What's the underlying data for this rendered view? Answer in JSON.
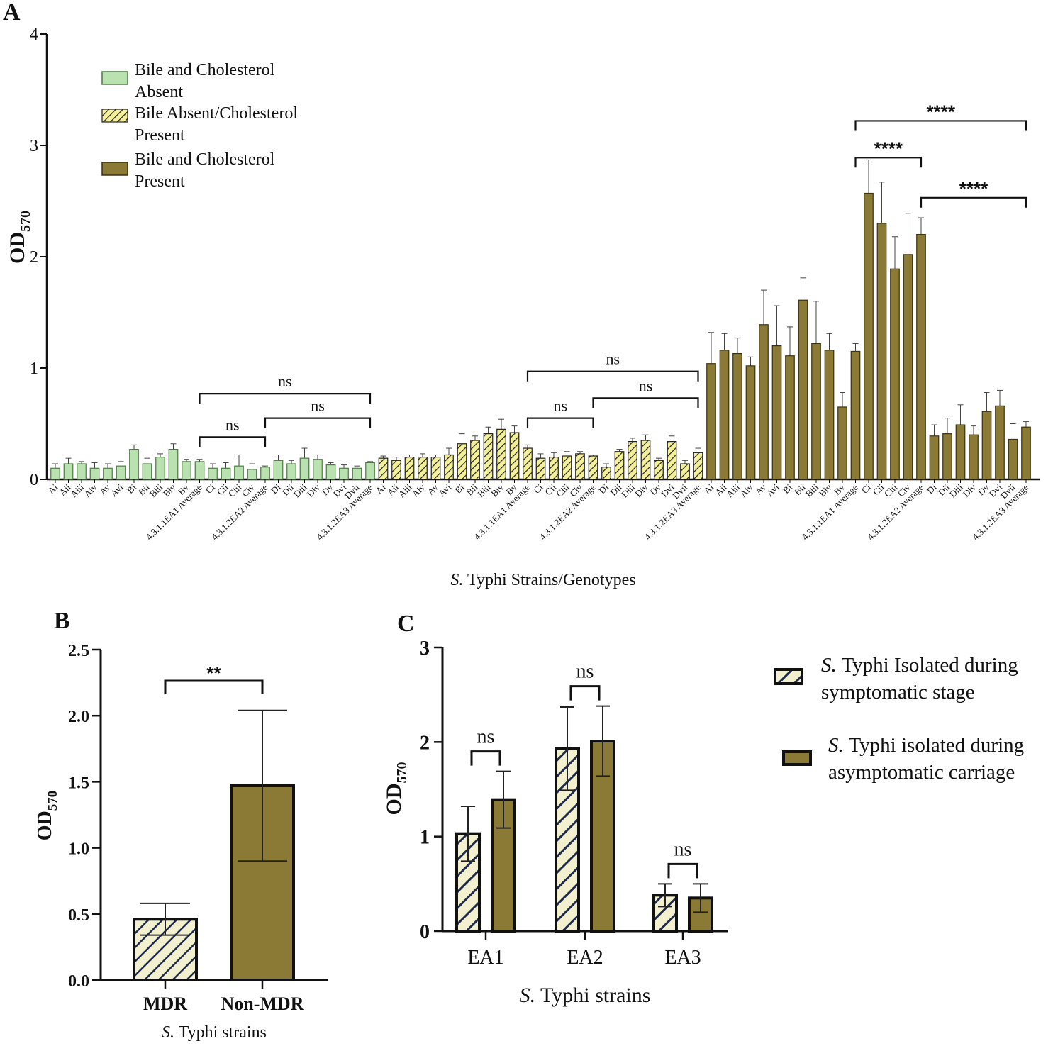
{
  "figure": {
    "panel_labels": [
      "A",
      "B",
      "C"
    ],
    "colors": {
      "absent": "#b9e2b0",
      "absent_stroke": "#4f7a45",
      "bile_absent": "#f4f09a",
      "hatch_line": "#222222",
      "present": "#8b7a36",
      "present_stroke": "#3b3312",
      "mdr_bg": "#f3f0cf",
      "mdr_line": "#1d2a4a"
    }
  },
  "chart_data": [
    {
      "id": "A",
      "type": "bar",
      "ylabel": "OD",
      "ylabel_sub": "570",
      "xlabel_italic": "S.",
      "xlabel_rest": " Typhi Strains/Genotypes",
      "ylim": [
        0,
        4
      ],
      "yticks": [
        "0",
        "1",
        "2",
        "3",
        "4"
      ],
      "legend": [
        {
          "line1": "Bile and Cholesterol",
          "line2": "Absent",
          "style": "absent"
        },
        {
          "line1": "Bile Absent/Cholesterol",
          "line2": "Present",
          "style": "bile_absent"
        },
        {
          "line1": "Bile and Cholesterol",
          "line2": "Present",
          "style": "present"
        }
      ],
      "categories": [
        "Ai",
        "Aii",
        "Aiii",
        "Aiv",
        "Av",
        "Avi",
        "Bi",
        "Bii",
        "Biii",
        "Biv",
        "Bv",
        "4.3.1.1EA1 Average",
        "Ci",
        "Cii",
        "Ciii",
        "Civ",
        "4.3.1.2EA2 Average",
        "Di",
        "Dii",
        "Diii",
        "Div",
        "Dv",
        "Dvi",
        "Dvii",
        "4.3.1.2EA3 Average"
      ],
      "series": [
        {
          "name": "Bile and Cholesterol Absent",
          "style": "absent",
          "values": [
            0.1,
            0.14,
            0.14,
            0.1,
            0.1,
            0.12,
            0.27,
            0.14,
            0.2,
            0.27,
            0.16,
            0.16,
            0.1,
            0.1,
            0.12,
            0.09,
            0.11,
            0.17,
            0.14,
            0.19,
            0.18,
            0.13,
            0.1,
            0.1,
            0.15
          ],
          "errors": [
            0.04,
            0.05,
            0.02,
            0.05,
            0.04,
            0.04,
            0.04,
            0.05,
            0.03,
            0.05,
            0.02,
            0.02,
            0.04,
            0.05,
            0.1,
            0.05,
            0.01,
            0.05,
            0.03,
            0.09,
            0.04,
            0.02,
            0.03,
            0.02,
            0.01
          ]
        },
        {
          "name": "Bile Absent/Cholesterol Present",
          "style": "bile_absent",
          "values": [
            0.19,
            0.17,
            0.2,
            0.2,
            0.2,
            0.22,
            0.32,
            0.35,
            0.41,
            0.45,
            0.42,
            0.28,
            0.19,
            0.2,
            0.21,
            0.23,
            0.21,
            0.11,
            0.25,
            0.34,
            0.35,
            0.17,
            0.34,
            0.14,
            0.24
          ],
          "errors": [
            0.02,
            0.03,
            0.02,
            0.03,
            0.02,
            0.06,
            0.09,
            0.04,
            0.06,
            0.09,
            0.06,
            0.03,
            0.04,
            0.04,
            0.04,
            0.02,
            0.01,
            0.03,
            0.02,
            0.03,
            0.05,
            0.02,
            0.05,
            0.03,
            0.04
          ]
        },
        {
          "name": "Bile and Cholesterol Present",
          "style": "present",
          "values": [
            1.04,
            1.16,
            1.13,
            1.02,
            1.39,
            1.2,
            1.11,
            1.61,
            1.22,
            1.16,
            0.65,
            1.15,
            2.57,
            2.3,
            1.89,
            2.02,
            2.2,
            0.39,
            0.41,
            0.49,
            0.4,
            0.61,
            0.66,
            0.36,
            0.47
          ],
          "errors": [
            0.28,
            0.15,
            0.14,
            0.08,
            0.31,
            0.36,
            0.26,
            0.2,
            0.38,
            0.15,
            0.13,
            0.07,
            0.3,
            0.37,
            0.29,
            0.37,
            0.15,
            0.1,
            0.14,
            0.18,
            0.08,
            0.17,
            0.14,
            0.14,
            0.05
          ]
        }
      ],
      "brackets": [
        {
          "label": "ns",
          "bold": false
        },
        {
          "label": "ns",
          "bold": false
        },
        {
          "label": "ns",
          "bold": false
        },
        {
          "label": "ns",
          "bold": false
        },
        {
          "label": "ns",
          "bold": false
        },
        {
          "label": "ns",
          "bold": false
        },
        {
          "label": "****",
          "bold": true
        },
        {
          "label": "****",
          "bold": true
        },
        {
          "label": "****",
          "bold": true
        }
      ]
    },
    {
      "id": "B",
      "type": "bar",
      "ylabel": "OD",
      "ylabel_sub": "570",
      "xlabel_italic": "S.",
      "xlabel_rest": " Typhi strains",
      "ylim": [
        0,
        2.5
      ],
      "yticks": [
        "0.0",
        "0.5",
        "1.0",
        "1.5",
        "2.0",
        "2.5"
      ],
      "categories": [
        "MDR",
        "Non-MDR"
      ],
      "values": [
        0.46,
        1.47
      ],
      "errors": [
        0.12,
        0.57
      ],
      "styles": [
        "mdr",
        "present"
      ],
      "significance": "**"
    },
    {
      "id": "C",
      "type": "bar",
      "ylabel": "OD",
      "ylabel_sub": "570",
      "xlabel_italic": "S.",
      "xlabel_rest": " Typhi strains",
      "ylim": [
        0,
        3
      ],
      "yticks": [
        "0",
        "1",
        "2",
        "3"
      ],
      "categories": [
        "EA1",
        "EA2",
        "EA3"
      ],
      "series": [
        {
          "name": "S. Typhi Isolated during symptomatic stage",
          "style": "symptomatic",
          "values": [
            1.03,
            1.93,
            0.38
          ],
          "errors": [
            0.29,
            0.44,
            0.12
          ]
        },
        {
          "name": "S. Typhi isolated during asymptomatic carriage",
          "style": "present",
          "values": [
            1.39,
            2.01,
            0.35
          ],
          "errors": [
            0.3,
            0.37,
            0.15
          ]
        }
      ],
      "significance": [
        "ns",
        "ns",
        "ns"
      ],
      "legend": [
        {
          "italic": "S.",
          "line1": " Typhi Isolated during",
          "line2": "symptomatic stage",
          "style": "symptomatic"
        },
        {
          "italic": "S.",
          "line1": " Typhi isolated during",
          "line2": "asymptomatic carriage",
          "style": "present"
        }
      ]
    }
  ]
}
